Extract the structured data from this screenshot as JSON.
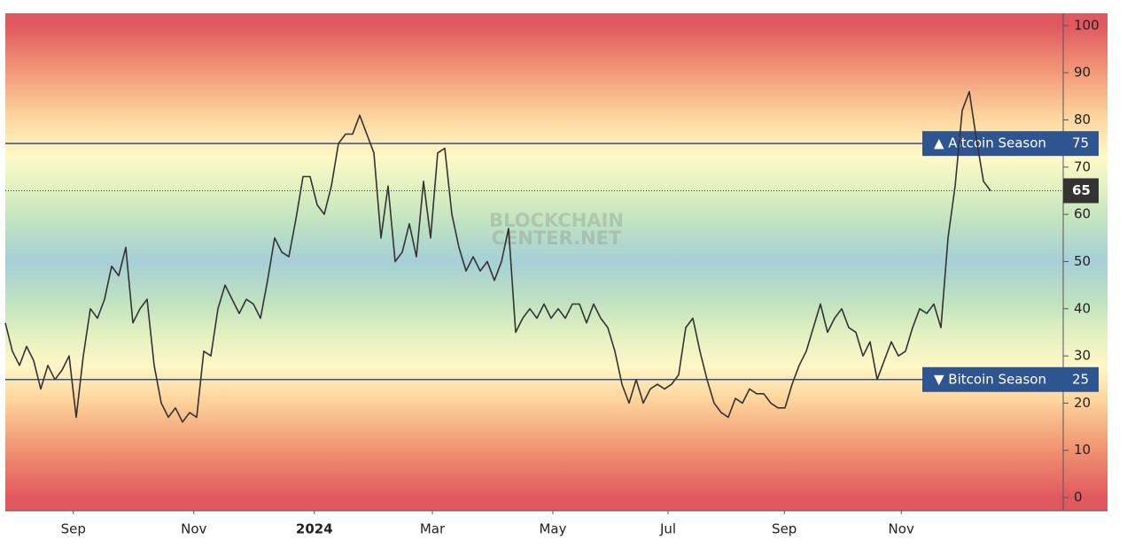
{
  "chart_data": {
    "type": "line",
    "watermark": [
      "BLOCKCHAIN",
      "CENTER.NET"
    ],
    "series": [
      {
        "color": "#333333",
        "values": [
          37,
          31,
          28,
          32,
          29,
          23,
          28,
          25,
          27,
          30,
          17,
          30,
          40,
          38,
          42,
          49,
          47,
          53,
          37,
          40,
          42,
          28,
          20,
          17,
          19,
          16,
          18,
          17,
          31,
          30,
          40,
          45,
          42,
          39,
          42,
          41,
          38,
          46,
          55,
          52,
          51,
          59,
          68,
          68,
          62,
          60,
          66,
          75,
          77,
          77,
          81,
          77,
          73,
          55,
          66,
          50,
          52,
          58,
          51,
          67,
          55,
          73,
          74,
          60,
          53,
          48,
          51,
          48,
          50,
          46,
          50,
          57,
          35,
          38,
          40,
          38,
          41,
          38,
          40,
          38,
          41,
          41,
          37,
          41,
          38,
          36,
          31,
          24,
          20,
          25,
          20,
          23,
          24,
          23,
          24,
          26,
          36,
          38,
          31,
          25,
          20,
          18,
          17,
          21,
          20,
          23,
          22,
          22,
          20,
          19,
          19,
          24,
          28,
          31,
          36,
          41,
          35,
          38,
          40,
          36,
          35,
          30,
          33,
          25,
          29,
          33,
          30,
          31,
          36,
          40,
          39,
          41,
          36,
          55,
          66,
          82,
          86,
          76,
          67,
          65
        ]
      }
    ],
    "xlim": [
      0,
      149.25
    ],
    "xticks": [
      {
        "value": 9.6,
        "label": "Sep"
      },
      {
        "value": 26.6,
        "label": "Nov"
      },
      {
        "value": 43.6,
        "label": "2024"
      },
      {
        "value": 60.25,
        "label": "Mar"
      },
      {
        "value": 77.25,
        "label": "May"
      },
      {
        "value": 93.5,
        "label": "Jul"
      },
      {
        "value": 109.9,
        "label": "Sep"
      },
      {
        "value": 126.4,
        "label": "Nov"
      }
    ],
    "ylim": [
      -2.8,
      102.6
    ],
    "yticks": [
      0,
      10,
      20,
      30,
      40,
      50,
      60,
      70,
      80,
      90,
      100
    ],
    "reference_lines": [
      {
        "label": "▲ Altcoin Season",
        "value": 75,
        "color": "#2f5591"
      },
      {
        "label": "▼ Bitcoin Season",
        "value": 25,
        "color": "#2f5591"
      }
    ]
  }
}
